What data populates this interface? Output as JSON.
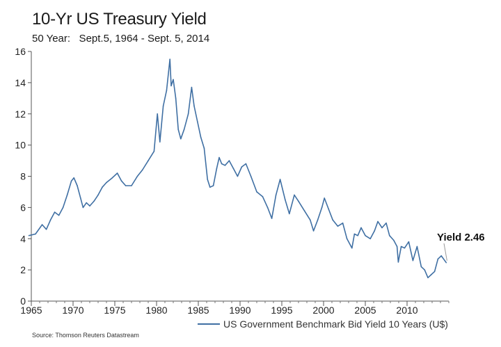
{
  "chart_data": {
    "type": "line",
    "title": "10-Yr US Treasury Yield",
    "subtitle": "50 Year:   Sept.5, 1964 - Sept. 5, 2014",
    "source": "Source: Thomson Reuters Datastream",
    "xlim": [
      1965,
      2015
    ],
    "ylim": [
      0,
      16
    ],
    "y_ticks": [
      0,
      2,
      4,
      6,
      8,
      10,
      12,
      14,
      16
    ],
    "y_tick_labels": [
      "0",
      "2",
      "4",
      "6",
      "8",
      "10",
      "12",
      "14",
      "16"
    ],
    "x_ticks": [
      1965,
      1970,
      1975,
      1980,
      1985,
      1990,
      1995,
      2000,
      2005,
      2010
    ],
    "x_tick_labels": [
      "1965",
      "1970",
      "1975",
      "1980",
      "1985",
      "1990",
      "1995",
      "2000",
      "2005",
      "2010"
    ],
    "grid": false,
    "legend_position": "bottom-right",
    "series": [
      {
        "name": "US Government Benchmark Bid Yield 10 Years (U$)",
        "color": "#3f6fa3",
        "x": [
          1964.7,
          1965.5,
          1966.3,
          1966.8,
          1967.3,
          1967.8,
          1968.3,
          1968.8,
          1969.3,
          1969.8,
          1970.1,
          1970.5,
          1970.9,
          1971.2,
          1971.6,
          1972,
          1972.5,
          1973,
          1973.5,
          1974,
          1974.7,
          1975.3,
          1975.8,
          1976.3,
          1977,
          1977.7,
          1978.3,
          1979,
          1979.7,
          1980.1,
          1980.4,
          1980.8,
          1981.2,
          1981.6,
          1981.75,
          1982,
          1982.3,
          1982.6,
          1982.9,
          1983.3,
          1983.8,
          1984.2,
          1984.5,
          1984.9,
          1985.3,
          1985.7,
          1986.1,
          1986.4,
          1986.8,
          1987.2,
          1987.5,
          1987.8,
          1988.2,
          1988.7,
          1989.2,
          1989.7,
          1990.2,
          1990.7,
          1991.3,
          1992,
          1992.7,
          1993.3,
          1993.8,
          1994.3,
          1994.8,
          1995.4,
          1995.9,
          1996.5,
          1997,
          1997.7,
          1998.4,
          1998.8,
          1999.3,
          1999.8,
          2000.1,
          2000.6,
          2001.1,
          2001.7,
          2002.3,
          2002.8,
          2003.4,
          2003.7,
          2004.1,
          2004.5,
          2005,
          2005.6,
          2006.1,
          2006.5,
          2007,
          2007.5,
          2007.9,
          2008.4,
          2008.8,
          2008.95,
          2009.3,
          2009.7,
          2010.2,
          2010.7,
          2011.2,
          2011.7,
          2012.1,
          2012.5,
          2012.9,
          2013.3,
          2013.7,
          2014.1,
          2014.7
        ],
        "y": [
          4.2,
          4.3,
          4.9,
          4.6,
          5.2,
          5.7,
          5.5,
          6.0,
          6.8,
          7.7,
          7.9,
          7.4,
          6.6,
          6.0,
          6.3,
          6.1,
          6.4,
          6.8,
          7.3,
          7.6,
          7.9,
          8.2,
          7.7,
          7.4,
          7.4,
          8.0,
          8.4,
          9.0,
          9.6,
          12.0,
          10.2,
          12.5,
          13.5,
          15.5,
          13.8,
          14.2,
          13.0,
          11.0,
          10.4,
          11.0,
          12.0,
          13.7,
          12.5,
          11.5,
          10.5,
          9.8,
          7.8,
          7.3,
          7.4,
          8.5,
          9.2,
          8.8,
          8.7,
          9.0,
          8.5,
          8.0,
          8.6,
          8.8,
          8.0,
          7.0,
          6.7,
          6.0,
          5.3,
          6.8,
          7.8,
          6.5,
          5.6,
          6.8,
          6.4,
          5.8,
          5.2,
          4.5,
          5.2,
          6.0,
          6.6,
          5.9,
          5.2,
          4.8,
          5.0,
          4.0,
          3.4,
          4.3,
          4.2,
          4.7,
          4.2,
          4.0,
          4.5,
          5.1,
          4.7,
          5.0,
          4.2,
          3.9,
          3.5,
          2.5,
          3.5,
          3.4,
          3.8,
          2.6,
          3.5,
          2.2,
          2.0,
          1.5,
          1.7,
          1.9,
          2.7,
          2.9,
          2.46
        ]
      }
    ],
    "annotation": {
      "text": "Yield 2.46",
      "x": 2014.7,
      "y": 2.46
    }
  }
}
